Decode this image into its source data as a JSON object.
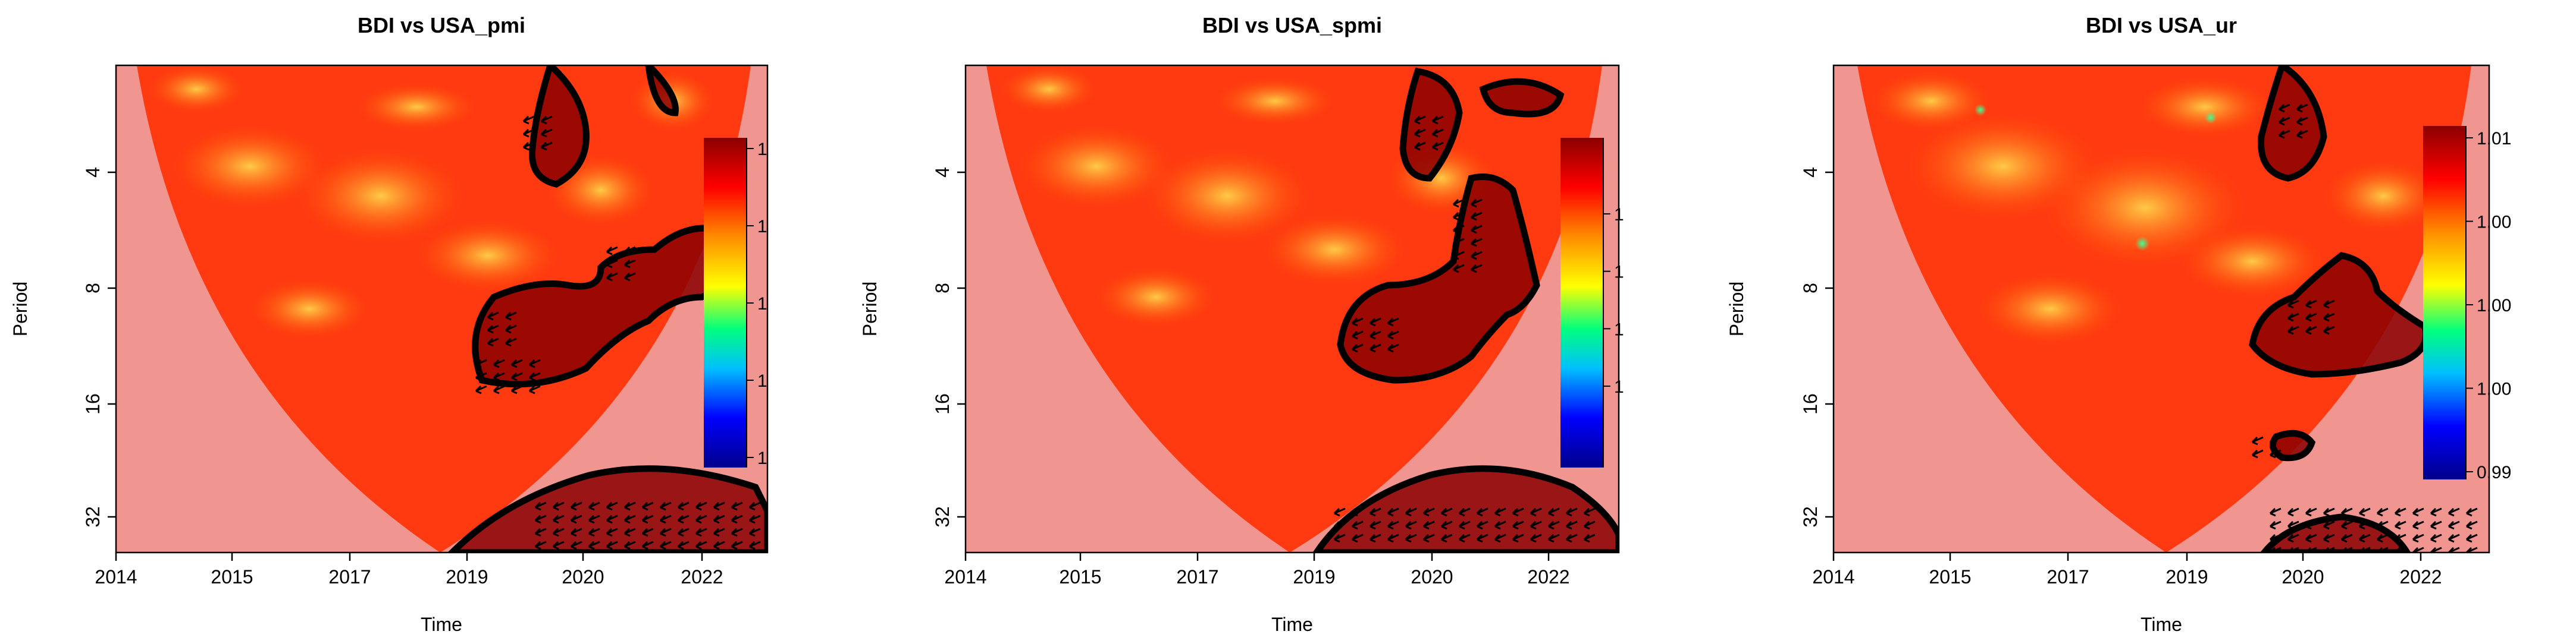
{
  "chart_data": [
    {
      "type": "heatmap",
      "title": "BDI  vs  USA_pmi",
      "xlabel": "Time",
      "ylabel": "Period",
      "x_ticks": [
        "2014",
        "2015",
        "2017",
        "2019",
        "2020",
        "2022"
      ],
      "y_ticks": [
        "4",
        "8",
        "16",
        "32"
      ],
      "colorbar_ticks": [
        "1",
        "1",
        "1",
        "1",
        "1"
      ],
      "color_scale": [
        "#00008b",
        "#0000ff",
        "#00bfff",
        "#00ff7f",
        "#ffff00",
        "#ff8c00",
        "#ff0000",
        "#8b0000"
      ],
      "cone_of_influence": true,
      "significance_contours": true,
      "phase_arrows": true
    },
    {
      "type": "heatmap",
      "title": "BDI  vs  USA_spmi",
      "xlabel": "Time",
      "ylabel": "Period",
      "x_ticks": [
        "2014",
        "2015",
        "2017",
        "2019",
        "2020",
        "2022"
      ],
      "y_ticks": [
        "4",
        "8",
        "16",
        "32"
      ],
      "colorbar_ticks": [
        "1",
        "1",
        "1",
        "1"
      ],
      "color_scale": [
        "#00008b",
        "#0000ff",
        "#00bfff",
        "#00ff7f",
        "#ffff00",
        "#ff8c00",
        "#ff0000",
        "#8b0000"
      ],
      "cone_of_influence": true,
      "significance_contours": true,
      "phase_arrows": true
    },
    {
      "type": "heatmap",
      "title": "BDI  vs  USA_ur",
      "xlabel": "Time",
      "ylabel": "Period",
      "x_ticks": [
        "2014",
        "2015",
        "2017",
        "2019",
        "2020",
        "2022"
      ],
      "y_ticks": [
        "4",
        "8",
        "16",
        "32"
      ],
      "colorbar_ticks": [
        "1.01",
        "1.00",
        "1.00",
        "1.00",
        "0.99"
      ],
      "color_scale": [
        "#00008b",
        "#0000ff",
        "#00bfff",
        "#00ff7f",
        "#ffff00",
        "#ff8c00",
        "#ff0000",
        "#8b0000"
      ],
      "cone_of_influence": true,
      "significance_contours": true,
      "phase_arrows": true
    }
  ]
}
